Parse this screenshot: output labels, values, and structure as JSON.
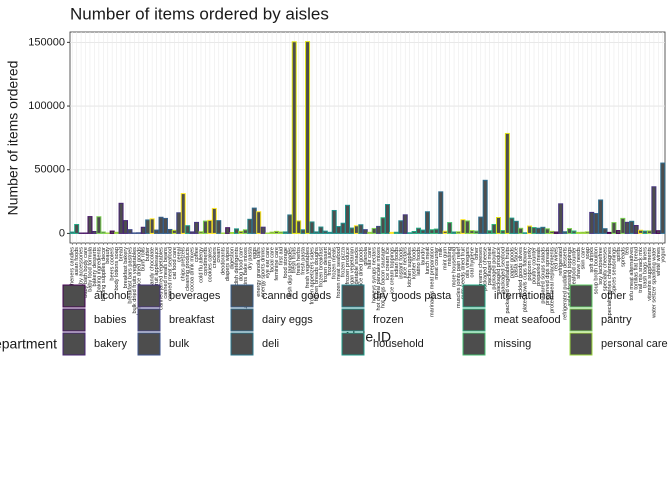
{
  "chart_data": {
    "type": "bar",
    "title": "Number of items ordered by aisles",
    "x_label": "Aisle ID",
    "y_label": "Number of items ordered",
    "categories": [
      "air fresheners candles",
      "asian foods",
      "baby accessories",
      "baby bath body care",
      "baby food formula",
      "bakery desserts",
      "baking ingredients",
      "baking supplies decor",
      "beauty",
      "beers coolers",
      "body lotions soap",
      "bread",
      "breakfast bakery",
      "breakfast bars pastries",
      "bulk dried fruits vegetables",
      "bulk grains rice dried goods",
      "buns rolls",
      "butter",
      "candy chocolate",
      "canned fruit applesauce",
      "canned jarred vegetables",
      "canned meals beans",
      "canned meat seafood",
      "cat food care",
      "cereal",
      "chips pretzels",
      "cleaning products",
      "cocoa drink mixes",
      "coffee",
      "cold flu allergy",
      "condiments",
      "cookies cakes",
      "crackers",
      "cream",
      "deodorants",
      "diapers wipes",
      "digestion",
      "dish detergents",
      "dog food care",
      "doughs gelatins bake mixes",
      "dry pasta",
      "eggs",
      "energy granola bars",
      "energy sports drinks",
      "eye ear care",
      "facial care",
      "feminine care",
      "first aid",
      "food storage",
      "fresh dips tapenades",
      "fresh fruits",
      "fresh herbs",
      "fresh pasta",
      "fresh vegetables",
      "frozen appetizers sides",
      "frozen breads doughs",
      "frozen breakfast",
      "frozen dessert",
      "frozen juice",
      "frozen meals",
      "frozen meat seafood",
      "frozen pizza",
      "frozen produce",
      "frozen vegan vegetarian",
      "fruit vegetable snacks",
      "grains rice dried goods",
      "granola",
      "hair care",
      "honeys syrups nectars",
      "hot cereal pancake mixes",
      "hot dogs bacon sausage",
      "ice cream ice",
      "ice cream toppings",
      "indian foods",
      "instant foods",
      "juice nectars",
      "kitchen supplies",
      "kosher foods",
      "latino foods",
      "laundry",
      "lunch meat",
      "marinades meat preparation",
      "meat counter",
      "milk",
      "mint gum",
      "missing",
      "more household",
      "muscles joints pain relief",
      "nuts seeds dried fruit",
      "oils vinegars",
      "oral hygiene",
      "other",
      "other creams cheeses",
      "packaged cheese",
      "packaged meat",
      "packaged poultry",
      "packaged produce",
      "packaged seafood",
      "packaged vegetables fruits",
      "paper goods",
      "pasta sauce",
      "pickled goods olives",
      "plates bowls cups flatware",
      "popcorn jerky",
      "poultry counter",
      "prepared meals",
      "prepared soups salads",
      "preserved dips spreads",
      "protein meal replacements",
      "red wines",
      "refrigerated",
      "refrigerated pudding desserts",
      "salad dressing toppings",
      "seafood counter",
      "shave needs",
      "skin care",
      "soap",
      "soft drinks",
      "soup broth bouillon",
      "soy lactosefree",
      "specialty cheeses",
      "specialty wines champagnes",
      "spices seasonings",
      "spirits",
      "spreads",
      "tea",
      "tofu meat alternatives",
      "tortillas flat bread",
      "trail mix snack mix",
      "trash bags liners",
      "vitamins supplements",
      "water seltzer sparkling water",
      "white wines",
      "yogurt"
    ],
    "values": [
      1067,
      7007,
      306,
      328,
      13198,
      1501,
      13088,
      1094,
      287,
      1839,
      890,
      23635,
      10054,
      2960,
      396,
      501,
      4823,
      10575,
      11453,
      2614,
      12679,
      11774,
      3101,
      2412,
      16201,
      31269,
      6048,
      1187,
      8650,
      1300,
      9660,
      10232,
      19592,
      10026,
      285,
      4500,
      711,
      3570,
      1612,
      2823,
      11081,
      19875,
      17051,
      4893,
      285,
      1000,
      1580,
      1090,
      1170,
      14500,
      150473,
      9844,
      2812,
      150609,
      9000,
      1200,
      5000,
      1800,
      850,
      18000,
      5400,
      7990,
      22068,
      4200,
      6000,
      6800,
      2950,
      860,
      3900,
      5500,
      12300,
      22676,
      800,
      900,
      9900,
      14600,
      500,
      1500,
      4100,
      2600,
      17000,
      2900,
      3400,
      32644,
      1700,
      8500,
      1100,
      1250,
      10800,
      9800,
      2200,
      1800,
      12800,
      41699,
      2100,
      7000,
      12500,
      2200,
      78493,
      12000,
      9500,
      4000,
      500,
      5800,
      4600,
      4100,
      4800,
      3600,
      1600,
      1100,
      23228,
      1300,
      3800,
      1900,
      800,
      900,
      1200,
      16500,
      15600,
      26240,
      3700,
      800,
      8500,
      2200,
      11800,
      8700,
      9500,
      6200,
      2500,
      1800,
      2000,
      36617,
      2100,
      55240
    ],
    "colors": [
      "#1E9C89",
      "#22A884",
      "#471365",
      "#471365",
      "#471365",
      "#482475",
      "#7AD151",
      "#7AD151",
      "#9BD93C",
      "#440154",
      "#9BD93C",
      "#482475",
      "#482475",
      "#414487",
      "#3B528B",
      "#3B528B",
      "#482475",
      "#2F6C8E",
      "#FDE725",
      "#355F8D",
      "#355F8D",
      "#355F8D",
      "#355F8D",
      "#BDDF26",
      "#414487",
      "#FDE725",
      "#1E9C89",
      "#463480",
      "#463480",
      "#9BD93C",
      "#7AD151",
      "#FDE725",
      "#FDE725",
      "#2F6C8E",
      "#9BD93C",
      "#471365",
      "#9BD93C",
      "#1E9C89",
      "#BDDF26",
      "#7AD151",
      "#25848E",
      "#2F6C8E",
      "#FDE725",
      "#463480",
      "#9BD93C",
      "#9BD93C",
      "#9BD93C",
      "#9BD93C",
      "#1E9C89",
      "#2A788E",
      "#DFE318",
      "#DFE318",
      "#25848E",
      "#DFE318",
      "#21918C",
      "#21918C",
      "#21918C",
      "#21918C",
      "#21918C",
      "#21918C",
      "#21918C",
      "#21918C",
      "#21918C",
      "#21918C",
      "#FDE725",
      "#25848E",
      "#414487",
      "#9BD93C",
      "#7AD151",
      "#414487",
      "#2FB47C",
      "#21918C",
      "#FDE725",
      "#22A884",
      "#25848E",
      "#463480",
      "#1E9C89",
      "#22A884",
      "#22A884",
      "#1E9C89",
      "#2A788E",
      "#2FB47C",
      "#2FB47C",
      "#2F6C8E",
      "#FDE725",
      "#44BF70",
      "#1E9C89",
      "#9BD93C",
      "#FDE725",
      "#7AD151",
      "#9BD93C",
      "#5EC962",
      "#2F6C8E",
      "#2F6C8E",
      "#2FB47C",
      "#2FB47C",
      "#DFE318",
      "#2FB47C",
      "#DFE318",
      "#1E9C89",
      "#25848E",
      "#7AD151",
      "#1E9C89",
      "#FDE725",
      "#2FB47C",
      "#2A788E",
      "#2A788E",
      "#7AD151",
      "#9BD93C",
      "#440154",
      "#463480",
      "#2F6C8E",
      "#7AD151",
      "#2FB47C",
      "#9BD93C",
      "#9BD93C",
      "#9BD93C",
      "#463480",
      "#355F8D",
      "#2F6C8E",
      "#2F6C8E",
      "#440154",
      "#7AD151",
      "#440154",
      "#7AD151",
      "#463480",
      "#2A788E",
      "#482475",
      "#FDE725",
      "#1E9C89",
      "#9BD93C",
      "#463480",
      "#440154",
      "#2F6C8E"
    ],
    "ylim": [
      -7530,
      158140
    ],
    "yticks": [
      0,
      50000,
      100000,
      150000
    ],
    "grid": true,
    "legend_title": "department",
    "legend": [
      {
        "name": "alcohol",
        "color": "#440154"
      },
      {
        "name": "babies",
        "color": "#471365"
      },
      {
        "name": "bakery",
        "color": "#482475"
      },
      {
        "name": "beverages",
        "color": "#463480"
      },
      {
        "name": "breakfast",
        "color": "#414487"
      },
      {
        "name": "bulk",
        "color": "#3B528B"
      },
      {
        "name": "canned goods",
        "color": "#355F8D"
      },
      {
        "name": "dairy eggs",
        "color": "#2F6C8E"
      },
      {
        "name": "deli",
        "color": "#2A788E"
      },
      {
        "name": "dry goods pasta",
        "color": "#25848E"
      },
      {
        "name": "frozen",
        "color": "#21918C"
      },
      {
        "name": "household",
        "color": "#1E9C89"
      },
      {
        "name": "international",
        "color": "#22A884"
      },
      {
        "name": "meat seafood",
        "color": "#2FB47C"
      },
      {
        "name": "missing",
        "color": "#44BF70"
      },
      {
        "name": "other",
        "color": "#5EC962"
      },
      {
        "name": "pantry",
        "color": "#7AD151"
      },
      {
        "name": "personal care",
        "color": "#9BD93C"
      }
    ]
  }
}
